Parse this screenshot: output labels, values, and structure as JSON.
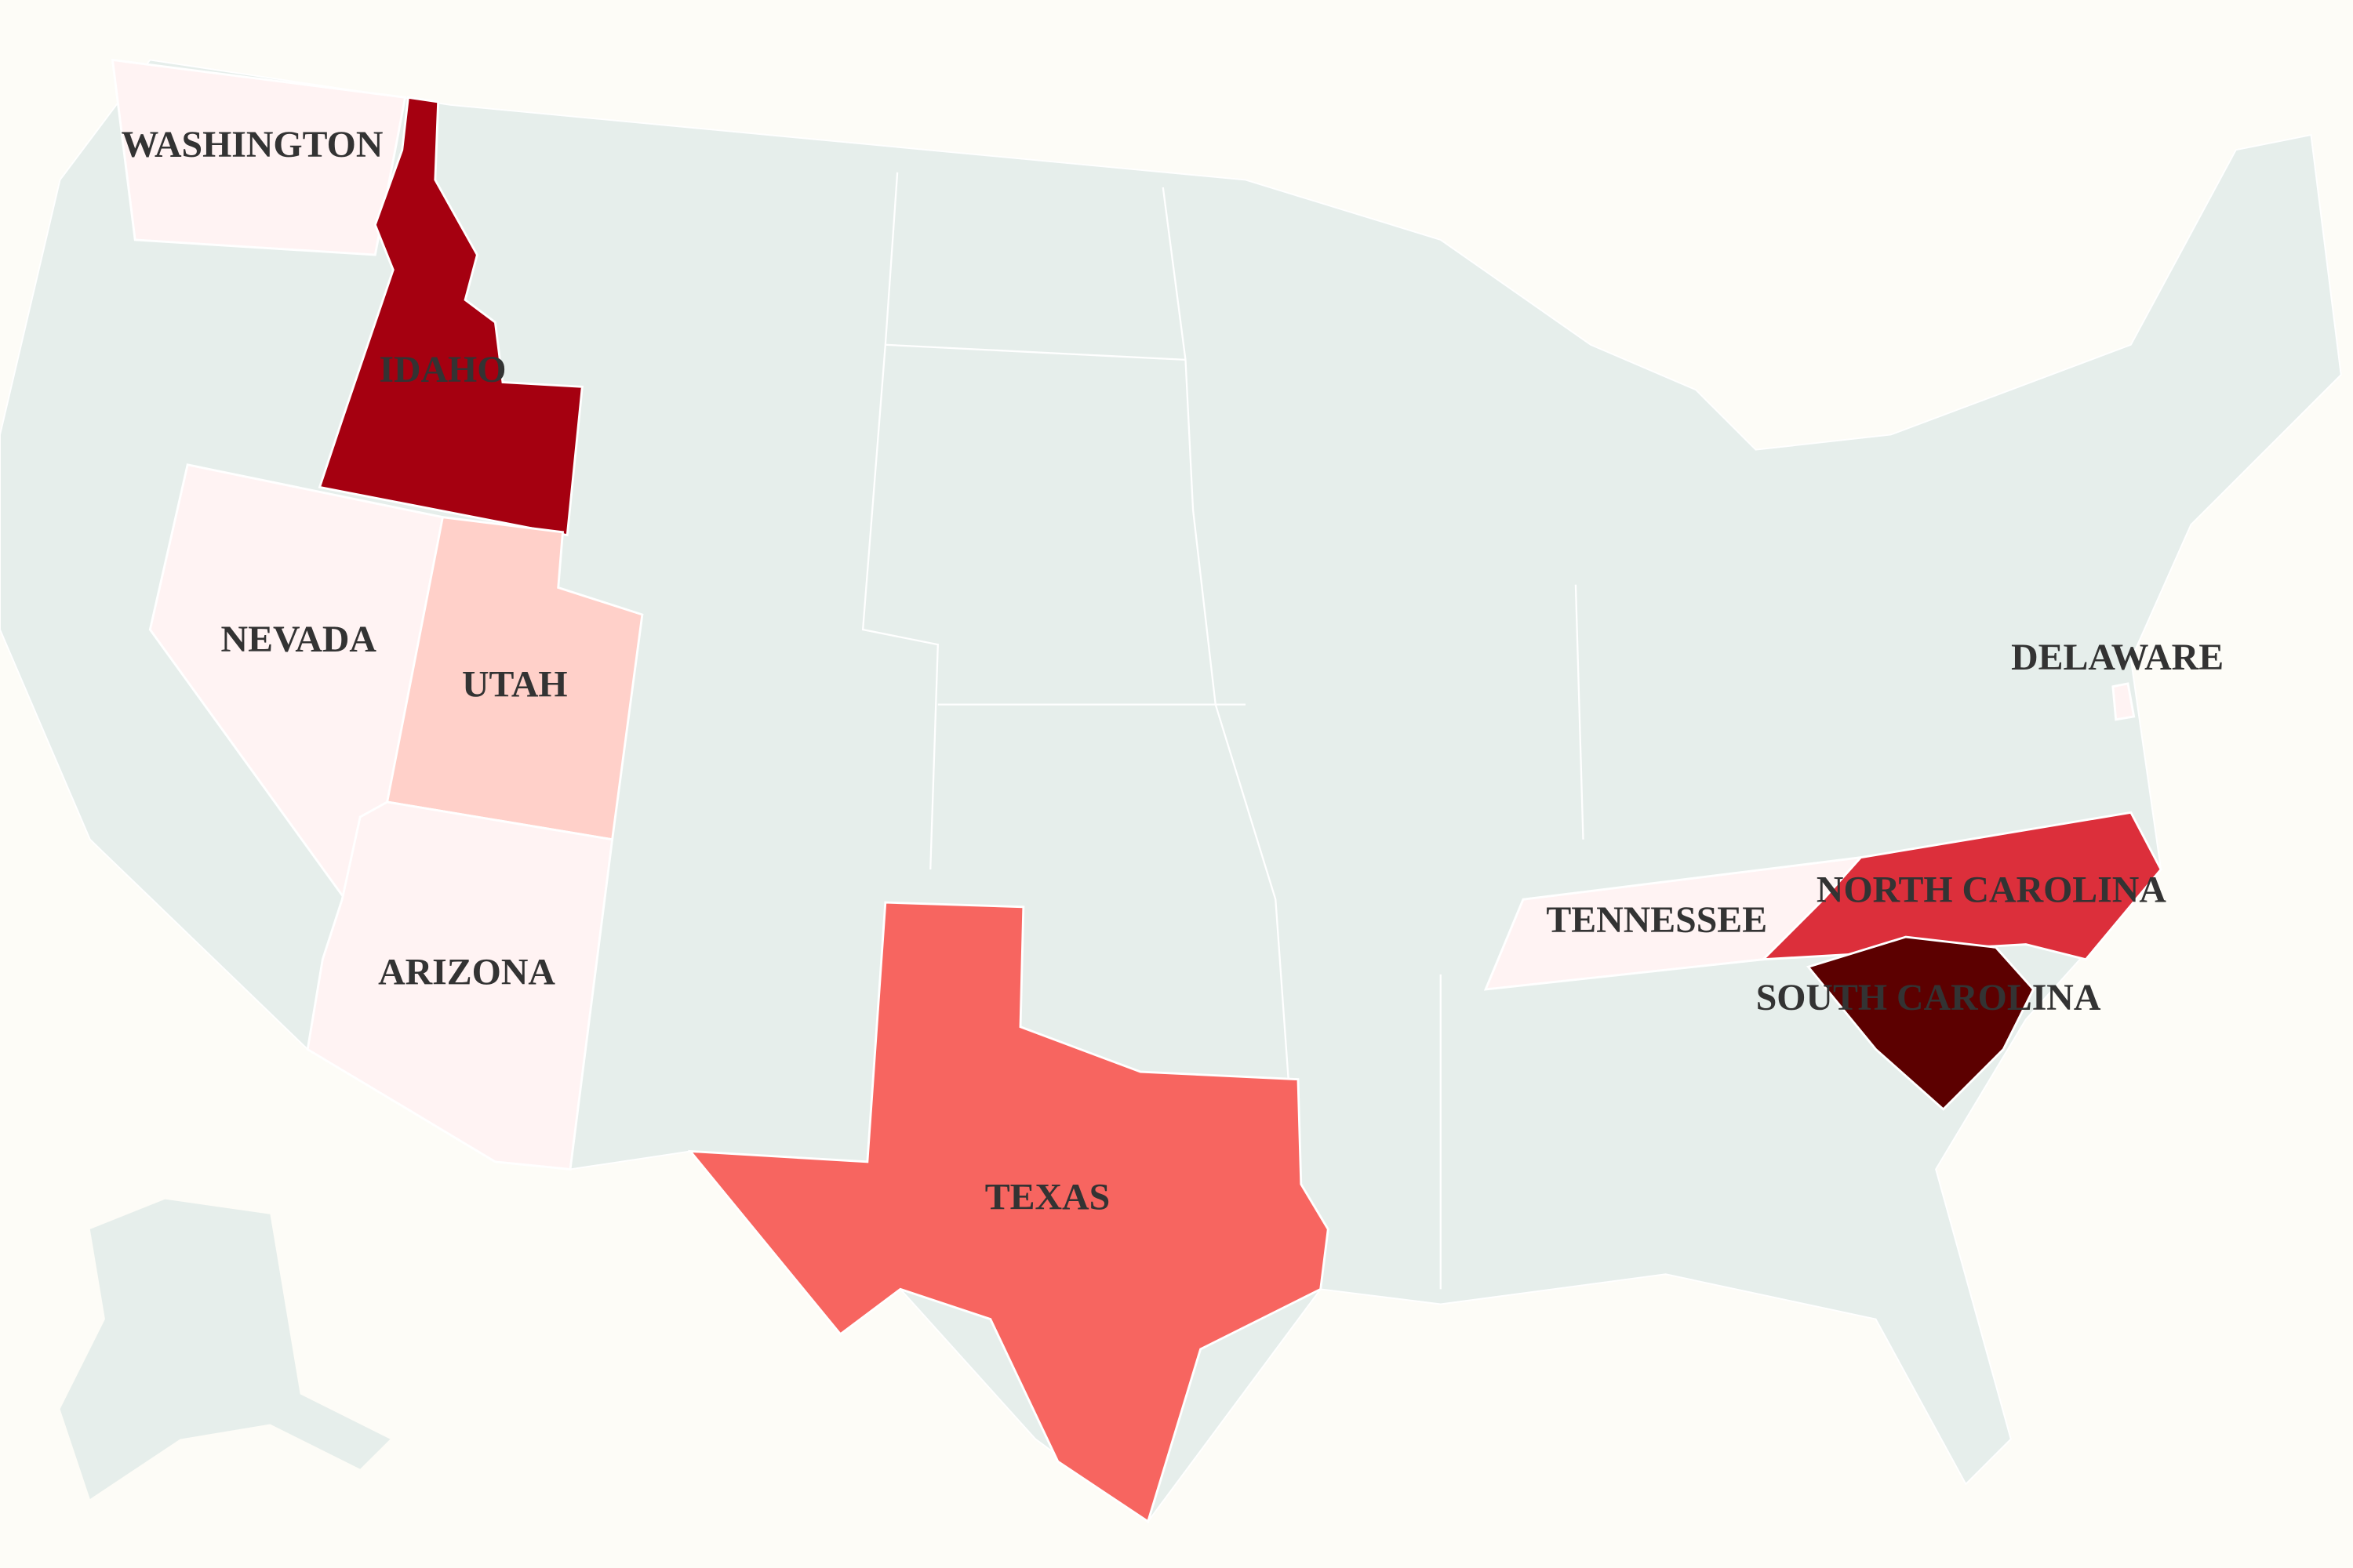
{
  "states": [
    {
      "label": "WASHINGTON",
      "color": "#fff3f3"
    },
    {
      "label": "IDAHO",
      "color": "#a50010"
    },
    {
      "label": "NEVADA",
      "color": "#fff3f3"
    },
    {
      "label": "UTAH",
      "color": "#ffd0c9"
    },
    {
      "label": "ARIZONA",
      "color": "#fff3f3"
    },
    {
      "label": "TEXAS",
      "color": "#f76560"
    },
    {
      "label": "TENNESSEE",
      "color": "#fff3f3"
    },
    {
      "label": "NORTH CAROLINA",
      "color": "#dc2f3b"
    },
    {
      "label": "SOUTH CAROLINA",
      "color": "#5c0000"
    },
    {
      "label": "DELAWARE",
      "color": "#fff3f3"
    }
  ]
}
